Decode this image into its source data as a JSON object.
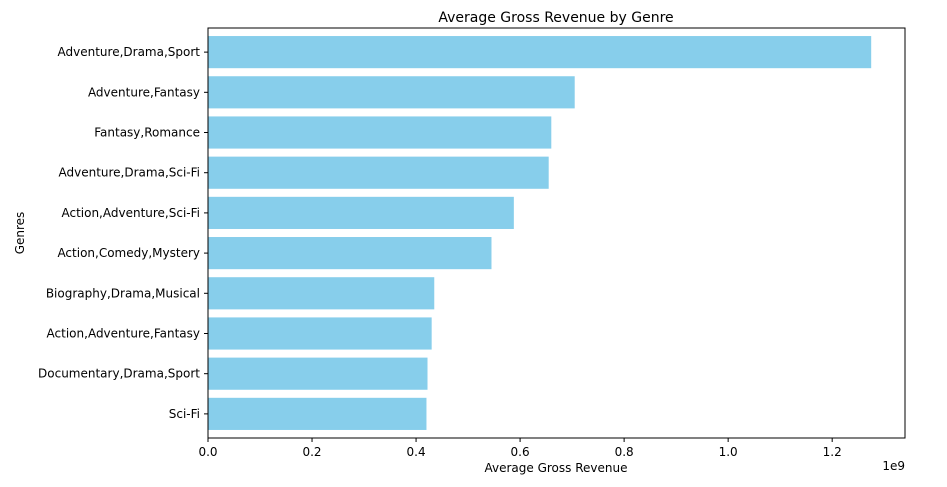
{
  "chart_data": {
    "type": "bar",
    "orientation": "horizontal",
    "title": "Average Gross Revenue by Genre",
    "xlabel": "Average Gross Revenue",
    "ylabel": "Genres",
    "x_offset_label": "1e9",
    "xlim": [
      0,
      1.34
    ],
    "x_ticks": [
      0.0,
      0.2,
      0.4,
      0.6,
      0.8,
      1.0,
      1.2
    ],
    "x_tick_labels": [
      "0.0",
      "0.2",
      "0.4",
      "0.6",
      "0.8",
      "1.0",
      "1.2"
    ],
    "grid": false,
    "bar_color": "#87ceeb",
    "categories": [
      "Adventure,Drama,Sport",
      "Adventure,Fantasy",
      "Fantasy,Romance",
      "Adventure,Drama,Sci-Fi",
      "Action,Adventure,Sci-Fi",
      "Action,Comedy,Mystery",
      "Biography,Drama,Musical",
      "Action,Adventure,Fantasy",
      "Documentary,Drama,Sport",
      "Sci-Fi"
    ],
    "values": [
      1.275,
      0.705,
      0.66,
      0.655,
      0.588,
      0.545,
      0.435,
      0.43,
      0.422,
      0.42
    ]
  }
}
